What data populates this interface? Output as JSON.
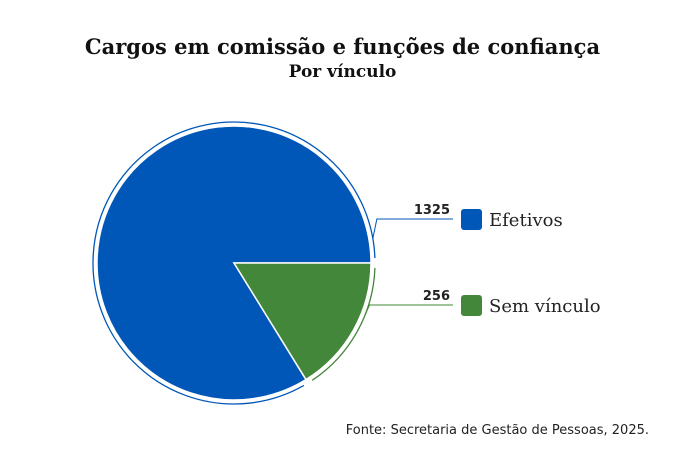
{
  "chart_data": {
    "type": "pie",
    "title": "Cargos em comissão e funções de confiança",
    "subtitle": "Por vínculo",
    "categories": [
      "Efetivos",
      "Sem vínculo"
    ],
    "values": [
      1325,
      256
    ],
    "value_labels": [
      "1325",
      "256"
    ],
    "colors": [
      "#0057b8",
      "#43873a"
    ],
    "legend_placement": "right",
    "source": "Fonte: Secretaria de Gestão de Pessoas, 2025."
  }
}
